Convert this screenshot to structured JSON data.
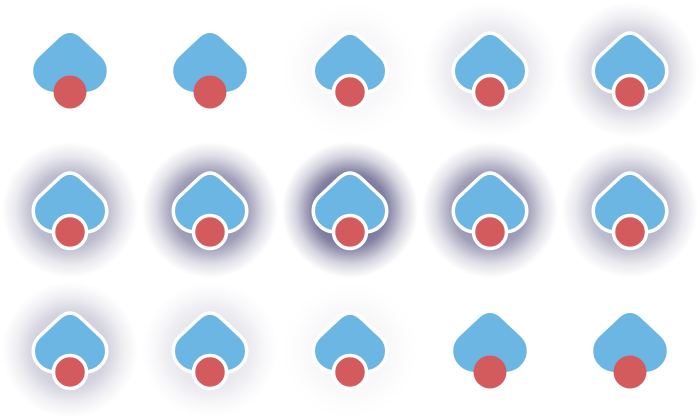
{
  "colors": {
    "background": "#ffffff",
    "cloud_fill": "#6cb6e3",
    "cloud_outline": "#ffffff",
    "dot_fill": "#d35b5e",
    "glow": "#3d3a6e"
  },
  "sprite_sheet": {
    "rows": 3,
    "columns": 5,
    "frames": [
      {
        "glow": 0.0,
        "outlined": false
      },
      {
        "glow": 0.0,
        "outlined": false
      },
      {
        "glow": 0.05,
        "outlined": true
      },
      {
        "glow": 0.15,
        "outlined": true
      },
      {
        "glow": 0.3,
        "outlined": true
      },
      {
        "glow": 0.45,
        "outlined": true
      },
      {
        "glow": 0.65,
        "outlined": true
      },
      {
        "glow": 0.85,
        "outlined": true
      },
      {
        "glow": 0.65,
        "outlined": true
      },
      {
        "glow": 0.45,
        "outlined": true
      },
      {
        "glow": 0.3,
        "outlined": true
      },
      {
        "glow": 0.15,
        "outlined": true
      },
      {
        "glow": 0.05,
        "outlined": true
      },
      {
        "glow": 0.0,
        "outlined": false
      },
      {
        "glow": 0.0,
        "outlined": false
      }
    ]
  }
}
